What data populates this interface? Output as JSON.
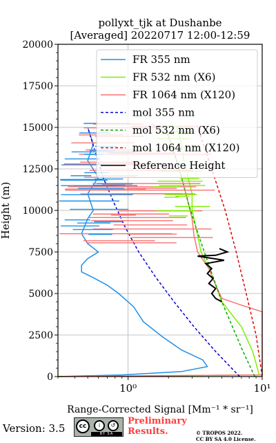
{
  "chart_data": {
    "type": "line",
    "title": "pollyxt_tjk at Dushanbe",
    "subtitle": "[Averaged] 20220717 12:00-12:59",
    "ylabel": "Height (m)",
    "xlabel": "Range-Corrected Signal [Mm⁻¹ * sr⁻¹]",
    "xscale": "log",
    "xlim": [
      0.3,
      10
    ],
    "ylim": [
      0,
      20000
    ],
    "x_ticks": [
      {
        "value": 1,
        "label": "10⁰"
      },
      {
        "value": 10,
        "label": "10¹"
      }
    ],
    "y_ticks": [
      0,
      2500,
      5000,
      7500,
      10000,
      12500,
      15000,
      17500,
      20000
    ],
    "grid": true,
    "legend_position": "top-right",
    "series": [
      {
        "name": "FR 355 nm",
        "color": "#1f8fe8",
        "style": "solid",
        "points": [
          [
            0.3,
            0
          ],
          [
            0.9,
            100
          ],
          [
            2.5,
            300
          ],
          [
            3.9,
            600
          ],
          [
            3.6,
            1000
          ],
          [
            2.5,
            1600
          ],
          [
            1.8,
            2400
          ],
          [
            1.3,
            3300
          ],
          [
            1.1,
            4200
          ],
          [
            0.85,
            5000
          ],
          [
            0.7,
            5500
          ],
          [
            0.55,
            5950
          ],
          [
            0.45,
            6300
          ],
          [
            0.45,
            6700
          ],
          [
            0.5,
            7100
          ],
          [
            0.6,
            7500
          ],
          [
            0.5,
            8000
          ],
          [
            0.45,
            8600
          ],
          [
            0.5,
            9500
          ],
          [
            0.55,
            10000
          ],
          [
            0.5,
            11000
          ],
          [
            0.6,
            12000
          ],
          [
            0.5,
            13000
          ],
          [
            0.55,
            14000
          ],
          [
            0.5,
            15000
          ]
        ]
      },
      {
        "name": "FR 532 nm (X6)",
        "color": "#7cf000",
        "style": "solid",
        "points": [
          [
            0.3,
            0
          ],
          [
            9.5,
            100
          ],
          [
            8.5,
            1500
          ],
          [
            7,
            3000
          ],
          [
            5,
            4500
          ],
          [
            4.5,
            5500
          ],
          [
            4,
            6500
          ],
          [
            3.5,
            7500
          ],
          [
            3.2,
            9000
          ],
          [
            3,
            10000
          ],
          [
            3,
            11000
          ],
          [
            2.8,
            12000
          ],
          [
            2.6,
            13000
          ],
          [
            2.5,
            14000
          ],
          [
            2.3,
            15000
          ]
        ]
      },
      {
        "name": "FR 1064 nm (X120)",
        "color": "#f87070",
        "style": "solid",
        "points": [
          [
            0.3,
            0
          ],
          [
            10,
            100
          ],
          [
            10,
            3900
          ],
          [
            7,
            4300
          ],
          [
            5,
            4700
          ],
          [
            4.5,
            5500
          ],
          [
            4,
            6500
          ],
          [
            3.3,
            7500
          ],
          [
            3.1,
            8500
          ],
          [
            3,
            9500
          ],
          [
            2.8,
            10500
          ],
          [
            2.6,
            11500
          ],
          [
            2.4,
            12500
          ],
          [
            2.2,
            13500
          ],
          [
            2,
            14500
          ],
          [
            1.5,
            15200
          ]
        ]
      },
      {
        "name": "mol 355 nm",
        "color": "#0000cc",
        "style": "dashed",
        "points": [
          [
            6.8,
            0
          ],
          [
            4.5,
            1500
          ],
          [
            3.1,
            3000
          ],
          [
            2.2,
            4500
          ],
          [
            1.6,
            6000
          ],
          [
            1.2,
            7500
          ],
          [
            0.95,
            9000
          ],
          [
            0.78,
            10500
          ],
          [
            0.65,
            12000
          ],
          [
            0.57,
            13500
          ],
          [
            0.5,
            15000
          ]
        ]
      },
      {
        "name": "mol 532 nm (X6)",
        "color": "#00aa00",
        "style": "dashed",
        "points": [
          [
            8.8,
            0
          ],
          [
            7.2,
            1500
          ],
          [
            6,
            3000
          ],
          [
            5,
            4500
          ],
          [
            4.3,
            6000
          ],
          [
            3.7,
            7500
          ],
          [
            3.2,
            9000
          ],
          [
            2.8,
            10500
          ],
          [
            2.5,
            12000
          ],
          [
            2.2,
            13500
          ],
          [
            1.9,
            15000
          ]
        ]
      },
      {
        "name": "mol 1064 nm (X120)",
        "color": "#dd0000",
        "style": "dashed",
        "points": [
          [
            10,
            0
          ],
          [
            9,
            2500
          ],
          [
            7.6,
            5000
          ],
          [
            6.4,
            7500
          ],
          [
            5.3,
            10000
          ],
          [
            4.2,
            12500
          ],
          [
            3.3,
            15000
          ]
        ]
      },
      {
        "name": "Reference Height",
        "color": "#000000",
        "style": "solid",
        "points": [
          [
            5,
            4500
          ],
          [
            4.5,
            4700
          ],
          [
            4.2,
            5000
          ],
          [
            4.5,
            5300
          ],
          [
            4.0,
            5600
          ],
          [
            4.3,
            5900
          ],
          [
            3.9,
            6200
          ],
          [
            4.2,
            6500
          ],
          [
            3.8,
            6800
          ],
          [
            5.2,
            7000
          ],
          [
            3.3,
            7250
          ],
          [
            4.5,
            7300
          ],
          [
            5.5,
            7500
          ],
          [
            4.8,
            7700
          ]
        ]
      }
    ]
  },
  "footer": {
    "version": "Version: 3.5",
    "badge_strip": "BY  SA",
    "prelim_line1": "Preliminary",
    "prelim_line2": "Results.",
    "copyright_line1": "© TROPOS 2022.",
    "copyright_line2": "CC BY SA 4.0 License."
  }
}
